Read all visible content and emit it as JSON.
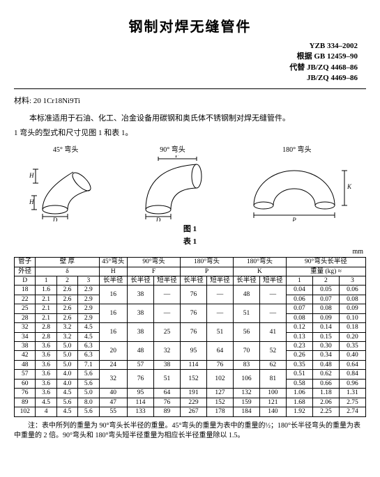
{
  "title": "钢制对焊无缝管件",
  "std": {
    "line1": "YZB 334–2002",
    "line2": "根据 GB 12459–90",
    "line3": "代替 JB/ZQ 4468–86",
    "line4": "JB/ZQ 4469–86"
  },
  "material_label": "材料:",
  "material": "20  1Cr18Ni9Ti",
  "scope": "本标准适用于石油、化工、冶金设备用碳钢和奥氏体不锈钢制对焊无缝管件。",
  "sec1": "1  弯头的型式和尺寸见图 1 和表 1。",
  "figs": {
    "a": "45° 弯头",
    "b": "90° 弯头",
    "c": "180° 弯头"
  },
  "figcap": "图 1",
  "tabcap": "表 1",
  "unit": "mm",
  "head": {
    "col_d_top": "管子",
    "col_d_mid": "外径",
    "col_d_sym": "D",
    "wall_top": "壁    厚",
    "wall_sym": "δ",
    "h45_top": "45°弯头",
    "h45_sym": "H",
    "f90_top": "90°弯头",
    "f90_sym": "F",
    "p180_top": "180°弯头",
    "p180_sym": "P",
    "k180_top": "180°弯头",
    "k180_sym": "K",
    "w90_top": "90°弯头长半径",
    "w90_sub": "重量  (kg)  ≈",
    "sub1": "1",
    "sub2": "2",
    "sub3": "3",
    "sub_long": "长半径",
    "sub_longr": "长半径",
    "sub_shortr": "短半径"
  },
  "rows": [
    {
      "D": "18",
      "t": [
        "1.6",
        "2.6",
        "2.9"
      ],
      "H": "16",
      "F": [
        "38",
        "—"
      ],
      "P": [
        "76",
        "—"
      ],
      "K": [
        "48",
        "—"
      ],
      "W": [
        "0.04",
        "0.05",
        "0.06"
      ],
      "merge": "top"
    },
    {
      "D": "22",
      "t": [
        "2.1",
        "2.6",
        "2.9"
      ],
      "W": [
        "0.06",
        "0.07",
        "0.08"
      ],
      "merge": "bot"
    },
    {
      "D": "25",
      "t": [
        "2.1",
        "2.6",
        "2.9"
      ],
      "H": "16",
      "F": [
        "38",
        "—"
      ],
      "P": [
        "76",
        "—"
      ],
      "K": [
        "51",
        "—"
      ],
      "W": [
        "0.07",
        "0.08",
        "0.09"
      ],
      "merge": "top"
    },
    {
      "D": "28",
      "t": [
        "2.1",
        "2.6",
        "2.9"
      ],
      "W": [
        "0.08",
        "0.09",
        "0.10"
      ],
      "merge": "bot"
    },
    {
      "D": "32",
      "t": [
        "2.8",
        "3.2",
        "4.5"
      ],
      "H": "16",
      "F": [
        "38",
        "25"
      ],
      "P": [
        "76",
        "51"
      ],
      "K": [
        "56",
        "41"
      ],
      "W": [
        "0.12",
        "0.14",
        "0.18"
      ],
      "merge": "top"
    },
    {
      "D": "34",
      "t": [
        "2.8",
        "3.2",
        "4.5"
      ],
      "W": [
        "0.13",
        "0.15",
        "0.20"
      ],
      "merge": "bot"
    },
    {
      "D": "38",
      "t": [
        "3.6",
        "5.0",
        "6.3"
      ],
      "H": "20",
      "F": [
        "48",
        "32"
      ],
      "P": [
        "95",
        "64"
      ],
      "K": [
        "70",
        "52"
      ],
      "W": [
        "0.23",
        "0.30",
        "0.35"
      ],
      "merge": "top"
    },
    {
      "D": "42",
      "t": [
        "3.6",
        "5.0",
        "6.3"
      ],
      "W": [
        "0.26",
        "0.34",
        "0.40"
      ],
      "merge": "bot"
    },
    {
      "D": "48",
      "t": [
        "3.6",
        "5.0",
        "7.1"
      ],
      "H": "24",
      "F": [
        "57",
        "38"
      ],
      "P": [
        "114",
        "76"
      ],
      "K": [
        "83",
        "62"
      ],
      "W": [
        "0.35",
        "0.48",
        "0.64"
      ],
      "merge": "single"
    },
    {
      "D": "57",
      "t": [
        "3.6",
        "4.0",
        "5.6"
      ],
      "H": "32",
      "F": [
        "76",
        "51"
      ],
      "P": [
        "152",
        "102"
      ],
      "K": [
        "106",
        "81"
      ],
      "W": [
        "0.51",
        "0.62",
        "0.84"
      ],
      "merge": "top"
    },
    {
      "D": "60",
      "t": [
        "3.6",
        "4.0",
        "5.6"
      ],
      "W": [
        "0.58",
        "0.66",
        "0.96"
      ],
      "merge": "bot"
    },
    {
      "D": "76",
      "t": [
        "3.6",
        "4.5",
        "5.0"
      ],
      "H": "40",
      "F": [
        "95",
        "64"
      ],
      "P": [
        "191",
        "127"
      ],
      "K": [
        "132",
        "100"
      ],
      "W": [
        "1.06",
        "1.18",
        "1.31"
      ],
      "merge": "single"
    },
    {
      "D": "89",
      "t": [
        "4.5",
        "5.6",
        "8.0"
      ],
      "H": "47",
      "F": [
        "114",
        "76"
      ],
      "P": [
        "229",
        "152"
      ],
      "K": [
        "159",
        "121"
      ],
      "W": [
        "1.68",
        "2.06",
        "2.75"
      ],
      "merge": "single"
    },
    {
      "D": "102",
      "t": [
        "4",
        "4.5",
        "5.6"
      ],
      "H": "55",
      "F": [
        "133",
        "89"
      ],
      "P": [
        "267",
        "178"
      ],
      "K": [
        "184",
        "140"
      ],
      "W": [
        "1.92",
        "2.25",
        "2.74"
      ],
      "merge": "single"
    }
  ],
  "note": "注：表中所列的重量为 90°弯头长半径的重量。45°弯头的重量为表中的重量的½；180°长半径弯头的重量为表中重量的 2 倍。90°弯头和 180°弯头短半径重量为相应长半径重量除以 1.5。"
}
